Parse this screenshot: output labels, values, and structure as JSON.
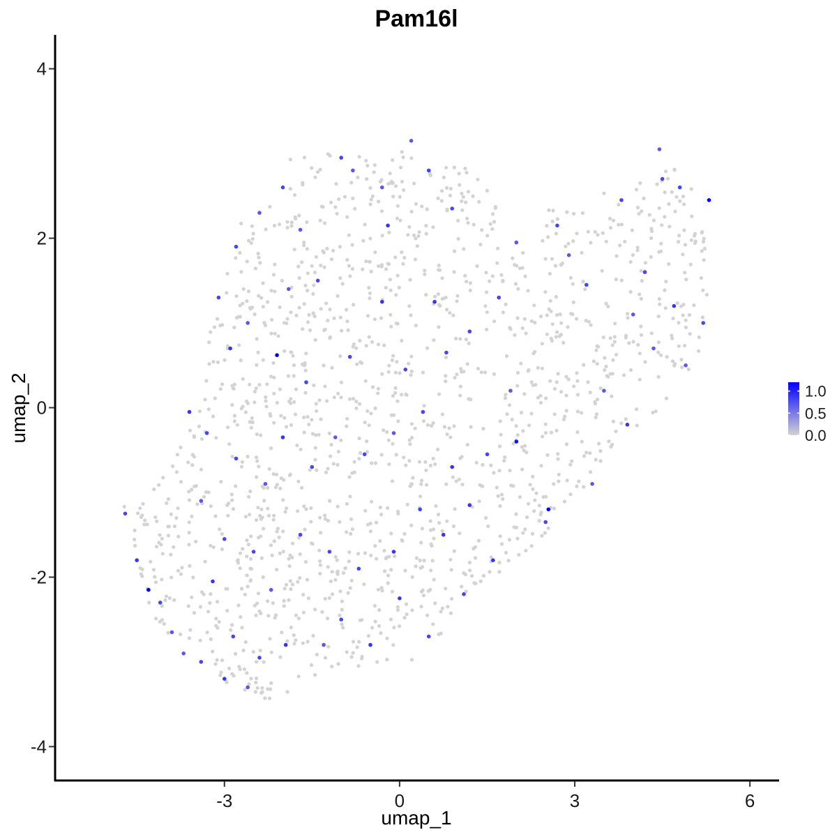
{
  "chart_data": {
    "type": "scatter",
    "title": "Pam16l",
    "xlabel": "umap_1",
    "ylabel": "umap_2",
    "xlim": [
      -5.9,
      6.5
    ],
    "ylim": [
      -4.4,
      4.4
    ],
    "x_ticks": [
      -3,
      0,
      3,
      6
    ],
    "x_tick_labels": [
      "-3",
      "0",
      "3",
      "6"
    ],
    "y_ticks": [
      -4,
      -2,
      0,
      2,
      4
    ],
    "y_tick_labels": [
      "-4",
      "-2",
      "0",
      "2",
      "4"
    ],
    "grid": false,
    "legend": {
      "position": "right",
      "type": "colorbar",
      "min": 0,
      "max": 1.2,
      "ticks": [
        0.0,
        0.5,
        1.0
      ],
      "tick_labels": [
        "0.0",
        "0.5",
        "1.0"
      ],
      "low_color": "#d3d3d3",
      "high_color": "#0000ff"
    },
    "points": [
      [
        -4.7,
        -1.25,
        0.8
      ],
      [
        -4.5,
        -1.8,
        0.9
      ],
      [
        -4.3,
        -2.15,
        1.2
      ],
      [
        -4.1,
        -2.3,
        0.8
      ],
      [
        -3.9,
        -2.65,
        0.7
      ],
      [
        -3.7,
        -2.9,
        0.7
      ],
      [
        -3.4,
        -3.0,
        0.8
      ],
      [
        -3.2,
        -2.05,
        0.9
      ],
      [
        -3.0,
        -3.2,
        0.9
      ],
      [
        -2.85,
        -2.7,
        0.8
      ],
      [
        -2.6,
        -3.3,
        0.7
      ],
      [
        -2.4,
        -2.95,
        0.8
      ],
      [
        -2.2,
        -2.15,
        0.7
      ],
      [
        -1.95,
        -2.8,
        0.9
      ],
      [
        -1.7,
        -1.5,
        0.8
      ],
      [
        -2.1,
        0.62,
        1.2
      ],
      [
        -2.9,
        0.7,
        0.9
      ],
      [
        -3.1,
        1.3,
        0.8
      ],
      [
        -2.8,
        1.9,
        0.8
      ],
      [
        -2.4,
        2.3,
        0.7
      ],
      [
        -2.0,
        2.6,
        0.8
      ],
      [
        -1.7,
        2.1,
        0.7
      ],
      [
        -1.4,
        1.5,
        0.8
      ],
      [
        -1.0,
        2.95,
        0.8
      ],
      [
        -0.8,
        2.8,
        0.7
      ],
      [
        -0.3,
        2.6,
        0.7
      ],
      [
        -0.2,
        2.15,
        0.9
      ],
      [
        0.2,
        3.15,
        0.7
      ],
      [
        0.5,
        2.8,
        0.8
      ],
      [
        0.9,
        2.35,
        0.8
      ],
      [
        -3.6,
        -0.05,
        0.9
      ],
      [
        -3.3,
        -0.3,
        0.8
      ],
      [
        -2.8,
        -0.6,
        0.8
      ],
      [
        -2.3,
        -0.9,
        0.7
      ],
      [
        -2.0,
        -0.35,
        0.9
      ],
      [
        -1.5,
        -0.7,
        0.8
      ],
      [
        -1.1,
        -0.35,
        0.7
      ],
      [
        -0.6,
        -0.55,
        0.8
      ],
      [
        -0.1,
        -0.3,
        0.7
      ],
      [
        0.4,
        -0.05,
        0.8
      ],
      [
        0.9,
        -0.7,
        0.9
      ],
      [
        1.2,
        -1.15,
        0.9
      ],
      [
        1.5,
        -0.55,
        0.8
      ],
      [
        2.0,
        -0.4,
        1.1
      ],
      [
        2.55,
        -1.2,
        1.2
      ],
      [
        2.5,
        -1.35,
        0.8
      ],
      [
        1.6,
        -1.8,
        0.9
      ],
      [
        1.1,
        -2.2,
        0.8
      ],
      [
        0.5,
        -2.7,
        0.8
      ],
      [
        0.0,
        -2.25,
        0.9
      ],
      [
        -0.5,
        -2.8,
        0.9
      ],
      [
        -1.0,
        -2.5,
        0.8
      ],
      [
        -1.3,
        -2.8,
        0.7
      ],
      [
        0.6,
        1.25,
        0.9
      ],
      [
        1.2,
        0.9,
        0.8
      ],
      [
        1.7,
        1.3,
        0.8
      ],
      [
        2.0,
        1.95,
        0.7
      ],
      [
        2.7,
        2.15,
        0.8
      ],
      [
        3.2,
        1.45,
        0.8
      ],
      [
        3.8,
        2.45,
        0.8
      ],
      [
        4.2,
        1.6,
        0.8
      ],
      [
        4.5,
        2.7,
        0.8
      ],
      [
        4.8,
        2.6,
        0.8
      ],
      [
        5.3,
        2.45,
        1.2
      ],
      [
        5.2,
        1.0,
        0.8
      ],
      [
        4.9,
        0.5,
        0.7
      ],
      [
        4.7,
        1.2,
        0.9
      ],
      [
        4.0,
        1.1,
        0.7
      ],
      [
        3.9,
        -0.2,
        0.9
      ],
      [
        3.3,
        -0.9,
        0.7
      ],
      [
        4.45,
        3.05,
        0.7
      ],
      [
        -0.85,
        0.6,
        0.8
      ],
      [
        -0.3,
        1.25,
        0.9
      ],
      [
        0.1,
        0.45,
        0.8
      ],
      [
        0.8,
        0.65,
        0.8
      ],
      [
        -1.9,
        1.4,
        0.7
      ],
      [
        -2.6,
        1.0,
        0.7
      ],
      [
        -3.4,
        -1.1,
        0.7
      ],
      [
        -3.0,
        -1.55,
        0.8
      ],
      [
        -2.5,
        -1.7,
        0.8
      ],
      [
        -1.2,
        -1.7,
        0.8
      ],
      [
        -0.7,
        -1.9,
        0.8
      ],
      [
        -0.1,
        -1.7,
        0.9
      ],
      [
        0.35,
        -1.2,
        0.8
      ],
      [
        0.75,
        -1.5,
        0.9
      ],
      [
        2.9,
        1.8,
        0.7
      ],
      [
        3.5,
        0.2,
        0.7
      ],
      [
        4.35,
        0.7,
        0.7
      ],
      [
        1.9,
        0.2,
        0.7
      ],
      [
        -1.6,
        0.3,
        0.8
      ]
    ]
  }
}
